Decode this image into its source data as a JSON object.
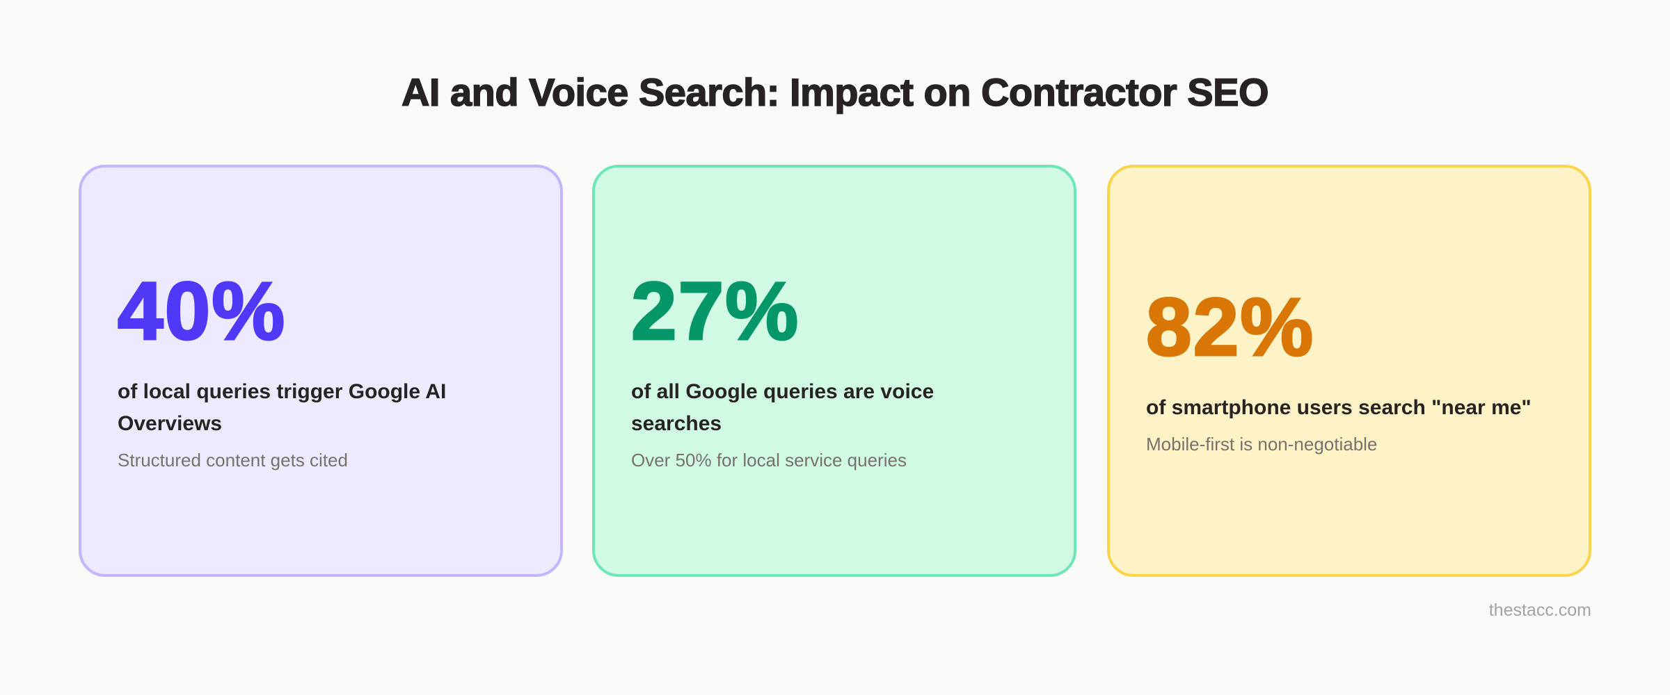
{
  "title": "AI and Voice Search: Impact on Contractor SEO",
  "cards": [
    {
      "value": "40%",
      "label": "of local queries trigger Google AI Overviews",
      "note": "Structured content gets cited",
      "accent": "#4f39f6",
      "bg": "#ede9fe",
      "border": "#c4b5fd"
    },
    {
      "value": "27%",
      "label": "of all Google queries are voice searches",
      "note": "Over 50% for local service queries",
      "accent": "#059669",
      "bg": "#d1fae5",
      "border": "#6ee7b7"
    },
    {
      "value": "82%",
      "label": "of smartphone users search \"near me\"",
      "note": "Mobile-first is non-negotiable",
      "accent": "#d97706",
      "bg": "#fef3c7",
      "border": "#fcd34d"
    }
  ],
  "footer": "thestacc.com"
}
